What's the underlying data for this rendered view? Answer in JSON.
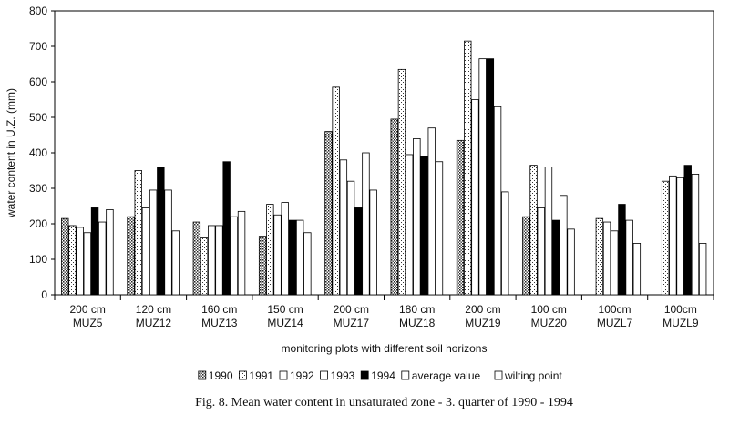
{
  "chart_data": {
    "type": "bar",
    "ylabel": "water content in U.Z. (mm)",
    "xlabel": "monitoring plots with different soil horizons",
    "caption": "Fig. 8. Mean water content in unsaturated zone - 3. quarter of 1990 - 1994",
    "ylim": [
      0,
      800
    ],
    "yticks": [
      "0",
      "100",
      "200",
      "300",
      "400",
      "500",
      "600",
      "700",
      "800"
    ],
    "categories": [
      {
        "depth": "200 cm",
        "plot": "MUZ5"
      },
      {
        "depth": "120 cm",
        "plot": "MUZ12"
      },
      {
        "depth": "160 cm",
        "plot": "MUZ13"
      },
      {
        "depth": "150 cm",
        "plot": "MUZ14"
      },
      {
        "depth": "200 cm",
        "plot": "MUZ17"
      },
      {
        "depth": "180 cm",
        "plot": "MUZ18"
      },
      {
        "depth": "200 cm",
        "plot": "MUZ19"
      },
      {
        "depth": "100 cm",
        "plot": "MUZ20"
      },
      {
        "depth": "100cm",
        "plot": "MUZL7"
      },
      {
        "depth": "100cm",
        "plot": "MUZL9"
      }
    ],
    "series": [
      {
        "name": "1990",
        "fill": "pat-dots",
        "values": [
          215,
          220,
          205,
          165,
          460,
          495,
          435,
          220,
          null,
          null
        ]
      },
      {
        "name": "1991",
        "fill": "pat-dots-light",
        "values": [
          195,
          350,
          160,
          255,
          585,
          635,
          715,
          365,
          215,
          320
        ]
      },
      {
        "name": "1992",
        "fill": "#ffffff",
        "values": [
          190,
          245,
          195,
          225,
          380,
          395,
          550,
          245,
          205,
          335
        ]
      },
      {
        "name": "1993",
        "fill": "#ffffff",
        "values": [
          175,
          295,
          195,
          260,
          320,
          440,
          665,
          360,
          180,
          330
        ]
      },
      {
        "name": "1994",
        "fill": "#000000",
        "values": [
          245,
          360,
          375,
          210,
          245,
          390,
          665,
          210,
          255,
          365
        ]
      },
      {
        "name": "average value",
        "fill": "#ffffff",
        "values": [
          205,
          295,
          220,
          210,
          400,
          470,
          530,
          280,
          210,
          340
        ]
      },
      {
        "name": "wilting point",
        "fill": "#ffffff",
        "values": [
          240,
          180,
          235,
          175,
          295,
          375,
          290,
          185,
          145,
          145
        ]
      }
    ],
    "legend": {
      "placement": "bottom"
    }
  }
}
